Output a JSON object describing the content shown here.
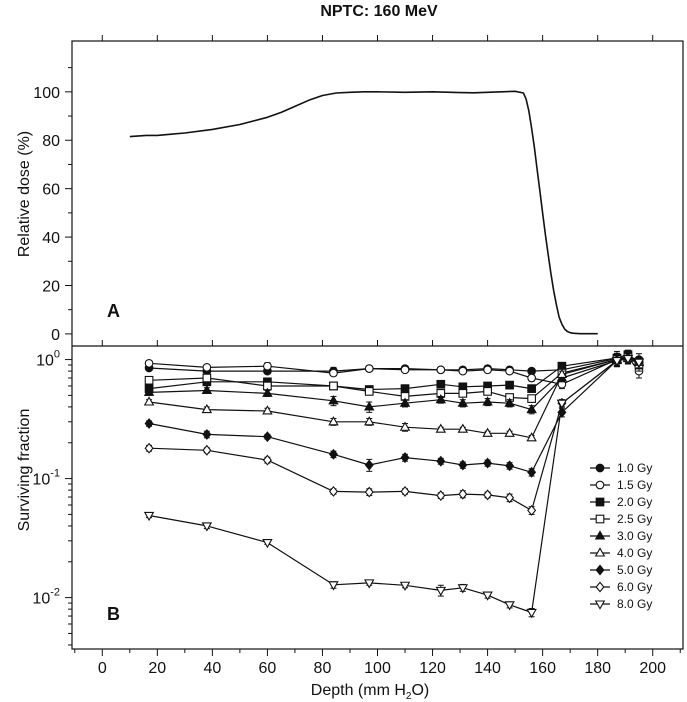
{
  "figure": {
    "title": "NPTC: 160 MeV",
    "xlabel_prefix": "Depth (mm H",
    "xlabel_sub": "2",
    "xlabel_suffix": "O)"
  },
  "chart_data": [
    {
      "type": "line",
      "panel": "A",
      "ylabel": "Relative dose (%)",
      "ylim": [
        -5,
        121
      ],
      "xlim": [
        -11,
        211
      ],
      "yticks": [
        0,
        20,
        40,
        60,
        80,
        100
      ],
      "series": [
        {
          "name": "Relative dose",
          "x": [
            10,
            16,
            20,
            25,
            30,
            40,
            50,
            60,
            65,
            70,
            75,
            80,
            85,
            90,
            95,
            100,
            110,
            120,
            130,
            135,
            140,
            145,
            150,
            153,
            154,
            155,
            156,
            157,
            158,
            159,
            160,
            161,
            162,
            163,
            164,
            165,
            166,
            167,
            168,
            169,
            170,
            171,
            172,
            174,
            176,
            180
          ],
          "y": [
            81.5,
            82,
            82,
            82.5,
            83,
            84.5,
            86.5,
            89.5,
            91.5,
            94,
            96.5,
            98.5,
            99.5,
            99.8,
            100,
            100,
            99.8,
            100,
            99.7,
            99.6,
            99.8,
            100,
            100.2,
            99.5,
            97,
            92,
            85,
            77,
            68,
            59,
            50,
            41,
            33,
            25,
            18,
            12,
            7,
            4,
            2,
            1,
            0.5,
            0.3,
            0.2,
            0.1,
            0.1,
            0.1
          ]
        }
      ]
    },
    {
      "type": "line",
      "panel": "B",
      "ylabel": "Surviving fraction",
      "yscale": "log",
      "ylim": [
        0.0037,
        1.3
      ],
      "xlim": [
        -11,
        211
      ],
      "xticks": [
        0,
        20,
        40,
        60,
        80,
        100,
        120,
        140,
        160,
        180,
        200
      ],
      "yticks": [
        {
          "value": 0.01,
          "base": "10",
          "exp": "-2"
        },
        {
          "value": 0.1,
          "base": "10",
          "exp": "-1"
        },
        {
          "value": 1,
          "base": "10",
          "exp": "0"
        }
      ],
      "series": [
        {
          "name": "1.0 Gy",
          "marker": "circle-filled",
          "x": [
            17,
            38,
            60,
            84,
            97,
            110,
            123,
            131,
            140,
            148,
            156,
            167,
            187,
            191,
            195
          ],
          "y": [
            0.85,
            0.8,
            0.8,
            0.8,
            0.84,
            0.84,
            0.82,
            0.82,
            0.84,
            0.82,
            0.8,
            0.82,
            1.02,
            1.05,
            1.0
          ],
          "err": [
            0.04,
            0.04,
            0.04,
            0.06,
            0.04,
            0.04,
            0.04,
            0.04,
            0.04,
            0.04,
            0.04,
            0.05,
            0.15,
            0.12,
            0.12
          ]
        },
        {
          "name": "1.5 Gy",
          "marker": "circle-open",
          "x": [
            17,
            38,
            60,
            84,
            97,
            110,
            123,
            131,
            140,
            148,
            156,
            167,
            187,
            191,
            195
          ],
          "y": [
            0.93,
            0.86,
            0.88,
            0.77,
            0.84,
            0.82,
            0.82,
            0.8,
            0.82,
            0.8,
            0.7,
            0.62,
            1.0,
            1.04,
            0.8
          ],
          "err": [
            0.04,
            0.04,
            0.06,
            0.04,
            0.04,
            0.04,
            0.04,
            0.04,
            0.04,
            0.04,
            0.04,
            0.05,
            0.12,
            0.12,
            0.1
          ]
        },
        {
          "name": "2.0 Gy",
          "marker": "square-filled",
          "x": [
            17,
            38,
            60,
            84,
            97,
            110,
            123,
            131,
            140,
            148,
            156,
            167,
            187,
            191,
            195
          ],
          "y": [
            0.57,
            0.65,
            0.65,
            0.6,
            0.56,
            0.57,
            0.62,
            0.59,
            0.6,
            0.61,
            0.57,
            0.88,
            1.03,
            1.1,
            0.95
          ],
          "err": [
            0.03,
            0.03,
            0.03,
            0.04,
            0.04,
            0.03,
            0.03,
            0.03,
            0.03,
            0.03,
            0.03,
            0.05,
            0.1,
            0.1,
            0.1
          ]
        },
        {
          "name": "2.5 Gy",
          "marker": "square-open",
          "x": [
            17,
            38,
            60,
            84,
            97,
            110,
            123,
            131,
            140,
            148,
            156,
            167,
            187,
            191,
            195
          ],
          "y": [
            0.67,
            0.7,
            0.6,
            0.6,
            0.54,
            0.49,
            0.52,
            0.52,
            0.54,
            0.48,
            0.47,
            0.77,
            1.0,
            1.05,
            0.9
          ],
          "err": [
            0.03,
            0.03,
            0.03,
            0.03,
            0.03,
            0.03,
            0.04,
            0.03,
            0.03,
            0.03,
            0.03,
            0.05,
            0.1,
            0.1,
            0.1
          ]
        },
        {
          "name": "3.0 Gy",
          "marker": "triangle-filled",
          "x": [
            17,
            38,
            60,
            84,
            97,
            110,
            123,
            131,
            140,
            148,
            156,
            167,
            187,
            191,
            195
          ],
          "y": [
            0.53,
            0.55,
            0.52,
            0.45,
            0.4,
            0.43,
            0.46,
            0.43,
            0.44,
            0.43,
            0.38,
            0.7,
            0.98,
            1.05,
            0.95
          ],
          "err": [
            0.03,
            0.03,
            0.03,
            0.04,
            0.04,
            0.03,
            0.03,
            0.03,
            0.03,
            0.03,
            0.03,
            0.05,
            0.1,
            0.1,
            0.1
          ]
        },
        {
          "name": "4.0 Gy",
          "marker": "triangle-open",
          "x": [
            17,
            38,
            60,
            84,
            97,
            110,
            123,
            131,
            140,
            148,
            156,
            167,
            187,
            191,
            195
          ],
          "y": [
            0.44,
            0.38,
            0.37,
            0.3,
            0.3,
            0.27,
            0.26,
            0.26,
            0.24,
            0.24,
            0.22,
            0.75,
            1.0,
            1.02,
            0.95
          ],
          "err": [
            0.02,
            0.02,
            0.02,
            0.02,
            0.02,
            0.02,
            0.01,
            0.01,
            0.01,
            0.01,
            0.01,
            0.05,
            0.1,
            0.1,
            0.1
          ]
        },
        {
          "name": "5.0 Gy",
          "marker": "diamond-filled",
          "x": [
            17,
            38,
            60,
            84,
            97,
            110,
            123,
            131,
            140,
            148,
            156,
            167,
            187,
            191,
            195
          ],
          "y": [
            0.29,
            0.235,
            0.225,
            0.16,
            0.13,
            0.15,
            0.14,
            0.13,
            0.135,
            0.128,
            0.113,
            0.36,
            0.98,
            1.02,
            0.95
          ],
          "err": [
            0.015,
            0.015,
            0.01,
            0.01,
            0.015,
            0.01,
            0.008,
            0.008,
            0.008,
            0.008,
            0.008,
            0.03,
            0.1,
            0.1,
            0.1
          ]
        },
        {
          "name": "6.0 Gy",
          "marker": "diamond-open",
          "x": [
            17,
            38,
            60,
            84,
            97,
            110,
            123,
            131,
            140,
            148,
            156,
            167,
            187,
            191,
            195
          ],
          "y": [
            0.18,
            0.173,
            0.143,
            0.078,
            0.077,
            0.078,
            0.072,
            0.074,
            0.073,
            0.069,
            0.054,
            0.43,
            0.98,
            1.02,
            0.95
          ],
          "err": [
            0.01,
            0.008,
            0.008,
            0.004,
            0.005,
            0.004,
            0.004,
            0.005,
            0.004,
            0.005,
            0.004,
            0.03,
            0.1,
            0.1,
            0.1
          ]
        },
        {
          "name": "8.0 Gy",
          "marker": "triangle-down-open",
          "x": [
            17,
            38,
            60,
            84,
            97,
            110,
            123,
            131,
            140,
            148,
            156,
            167,
            187,
            191,
            195
          ],
          "y": [
            0.049,
            0.04,
            0.029,
            0.0128,
            0.0133,
            0.0127,
            0.0115,
            0.0121,
            0.0105,
            0.0087,
            0.0075,
            0.43,
            0.98,
            1.02,
            0.95
          ],
          "err": [
            0.002,
            0.002,
            0.001,
            0.0008,
            0.0006,
            0.0006,
            0.0012,
            0.0008,
            0.0006,
            0.0005,
            0.0006,
            0.03,
            0.1,
            0.1,
            0.1
          ]
        }
      ]
    }
  ]
}
